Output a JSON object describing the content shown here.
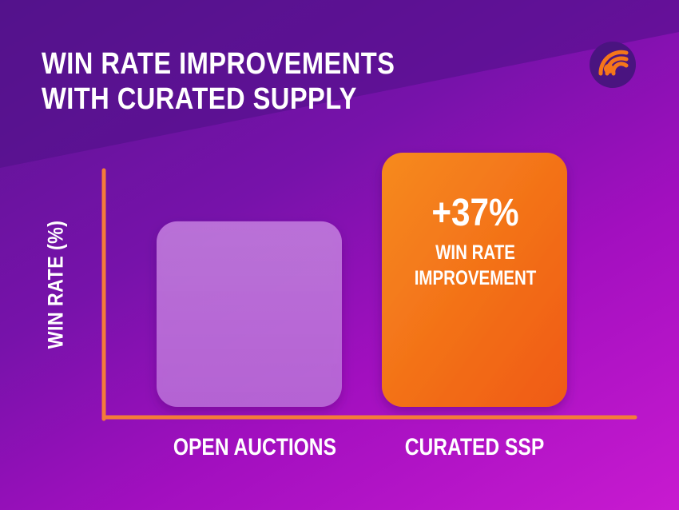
{
  "title_lines": [
    "WIN RATE IMPROVEMENTS",
    "WITH CURATED SUPPLY"
  ],
  "colors": {
    "background_top": "#5a1592",
    "background_bottom": "#c81ad0",
    "accent_orange": "#f5761a",
    "bar_open": "#b565d6",
    "axis": "#f47b3a"
  },
  "logo": {
    "icon": "orange-signal-logo-icon"
  },
  "chart_data": {
    "type": "bar",
    "ylabel": "WIN RATE (%)",
    "categories": [
      "OPEN AUCTIONS",
      "CURATED SSP"
    ],
    "values": [
      100,
      137
    ],
    "annotations": [
      {
        "category": "CURATED SSP",
        "value_text": "+37%",
        "label_lines": [
          "WIN RATE",
          "IMPROVEMENT"
        ]
      }
    ],
    "grid": false,
    "legend": "none"
  }
}
